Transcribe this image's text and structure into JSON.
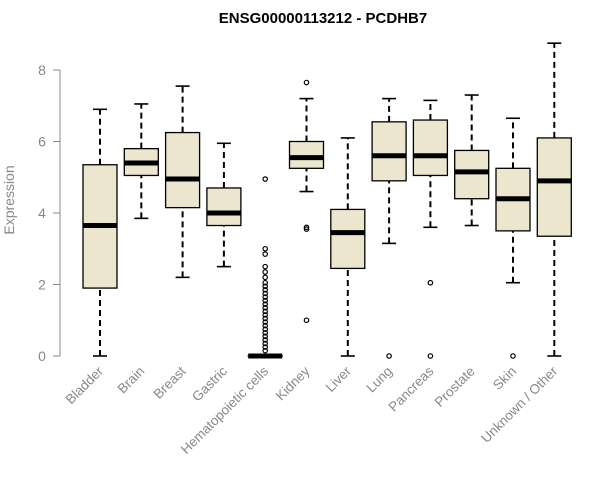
{
  "chart_data": {
    "type": "boxplot",
    "title": "ENSG00000113212 - PCDHB7",
    "xlabel": "",
    "ylabel": "Expression",
    "ylim": [
      0,
      9
    ],
    "yticks": [
      0,
      2,
      4,
      6,
      8
    ],
    "box_color": "#ece6cf",
    "categories": [
      "Bladder",
      "Brain",
      "Breast",
      "Gastric",
      "Hematopoietic cells",
      "Kidney",
      "Liver",
      "Lung",
      "Pancreas",
      "Prostate",
      "Skin",
      "Unknown / Other"
    ],
    "boxes": [
      {
        "name": "Bladder",
        "min": 0,
        "q1": 1.9,
        "median": 3.65,
        "q3": 5.35,
        "max": 6.9,
        "outliers": []
      },
      {
        "name": "Brain",
        "min": 3.85,
        "q1": 5.05,
        "median": 5.4,
        "q3": 5.8,
        "max": 7.05,
        "outliers": []
      },
      {
        "name": "Breast",
        "min": 2.2,
        "q1": 4.15,
        "median": 4.95,
        "q3": 6.25,
        "max": 7.55,
        "outliers": []
      },
      {
        "name": "Gastric",
        "min": 2.5,
        "q1": 3.65,
        "median": 4.0,
        "q3": 4.7,
        "max": 5.95,
        "outliers": []
      },
      {
        "name": "Hematopoietic cells",
        "min": 0,
        "q1": 0,
        "median": 0,
        "q3": 0,
        "max": 0,
        "outliers": [
          4.95,
          3.0,
          2.85,
          2.5,
          2.35,
          2.2,
          2.05,
          1.95,
          1.85,
          1.75,
          1.65,
          1.55,
          1.45,
          1.35,
          1.25,
          1.15,
          1.05,
          0.95,
          0.85,
          0.75,
          0.65,
          0.55,
          0.45,
          0.35,
          0.25,
          0.15
        ]
      },
      {
        "name": "Kidney",
        "min": 4.6,
        "q1": 5.25,
        "median": 5.55,
        "q3": 6.0,
        "max": 7.2,
        "outliers": [
          7.65,
          3.6,
          3.55,
          1.0
        ]
      },
      {
        "name": "Liver",
        "min": 0,
        "q1": 2.45,
        "median": 3.45,
        "q3": 4.1,
        "max": 6.1,
        "outliers": []
      },
      {
        "name": "Lung",
        "min": 3.15,
        "q1": 4.9,
        "median": 5.6,
        "q3": 6.55,
        "max": 7.2,
        "outliers": [
          0
        ]
      },
      {
        "name": "Pancreas",
        "min": 3.6,
        "q1": 5.05,
        "median": 5.6,
        "q3": 6.6,
        "max": 7.15,
        "outliers": [
          2.05,
          0
        ]
      },
      {
        "name": "Prostate",
        "min": 3.65,
        "q1": 4.4,
        "median": 5.15,
        "q3": 5.75,
        "max": 7.3,
        "outliers": []
      },
      {
        "name": "Skin",
        "min": 2.05,
        "q1": 3.5,
        "median": 4.4,
        "q3": 5.25,
        "max": 6.65,
        "outliers": [
          0
        ]
      },
      {
        "name": "Unknown / Other",
        "min": 0,
        "q1": 3.35,
        "median": 4.9,
        "q3": 6.1,
        "max": 8.75,
        "outliers": []
      }
    ]
  }
}
